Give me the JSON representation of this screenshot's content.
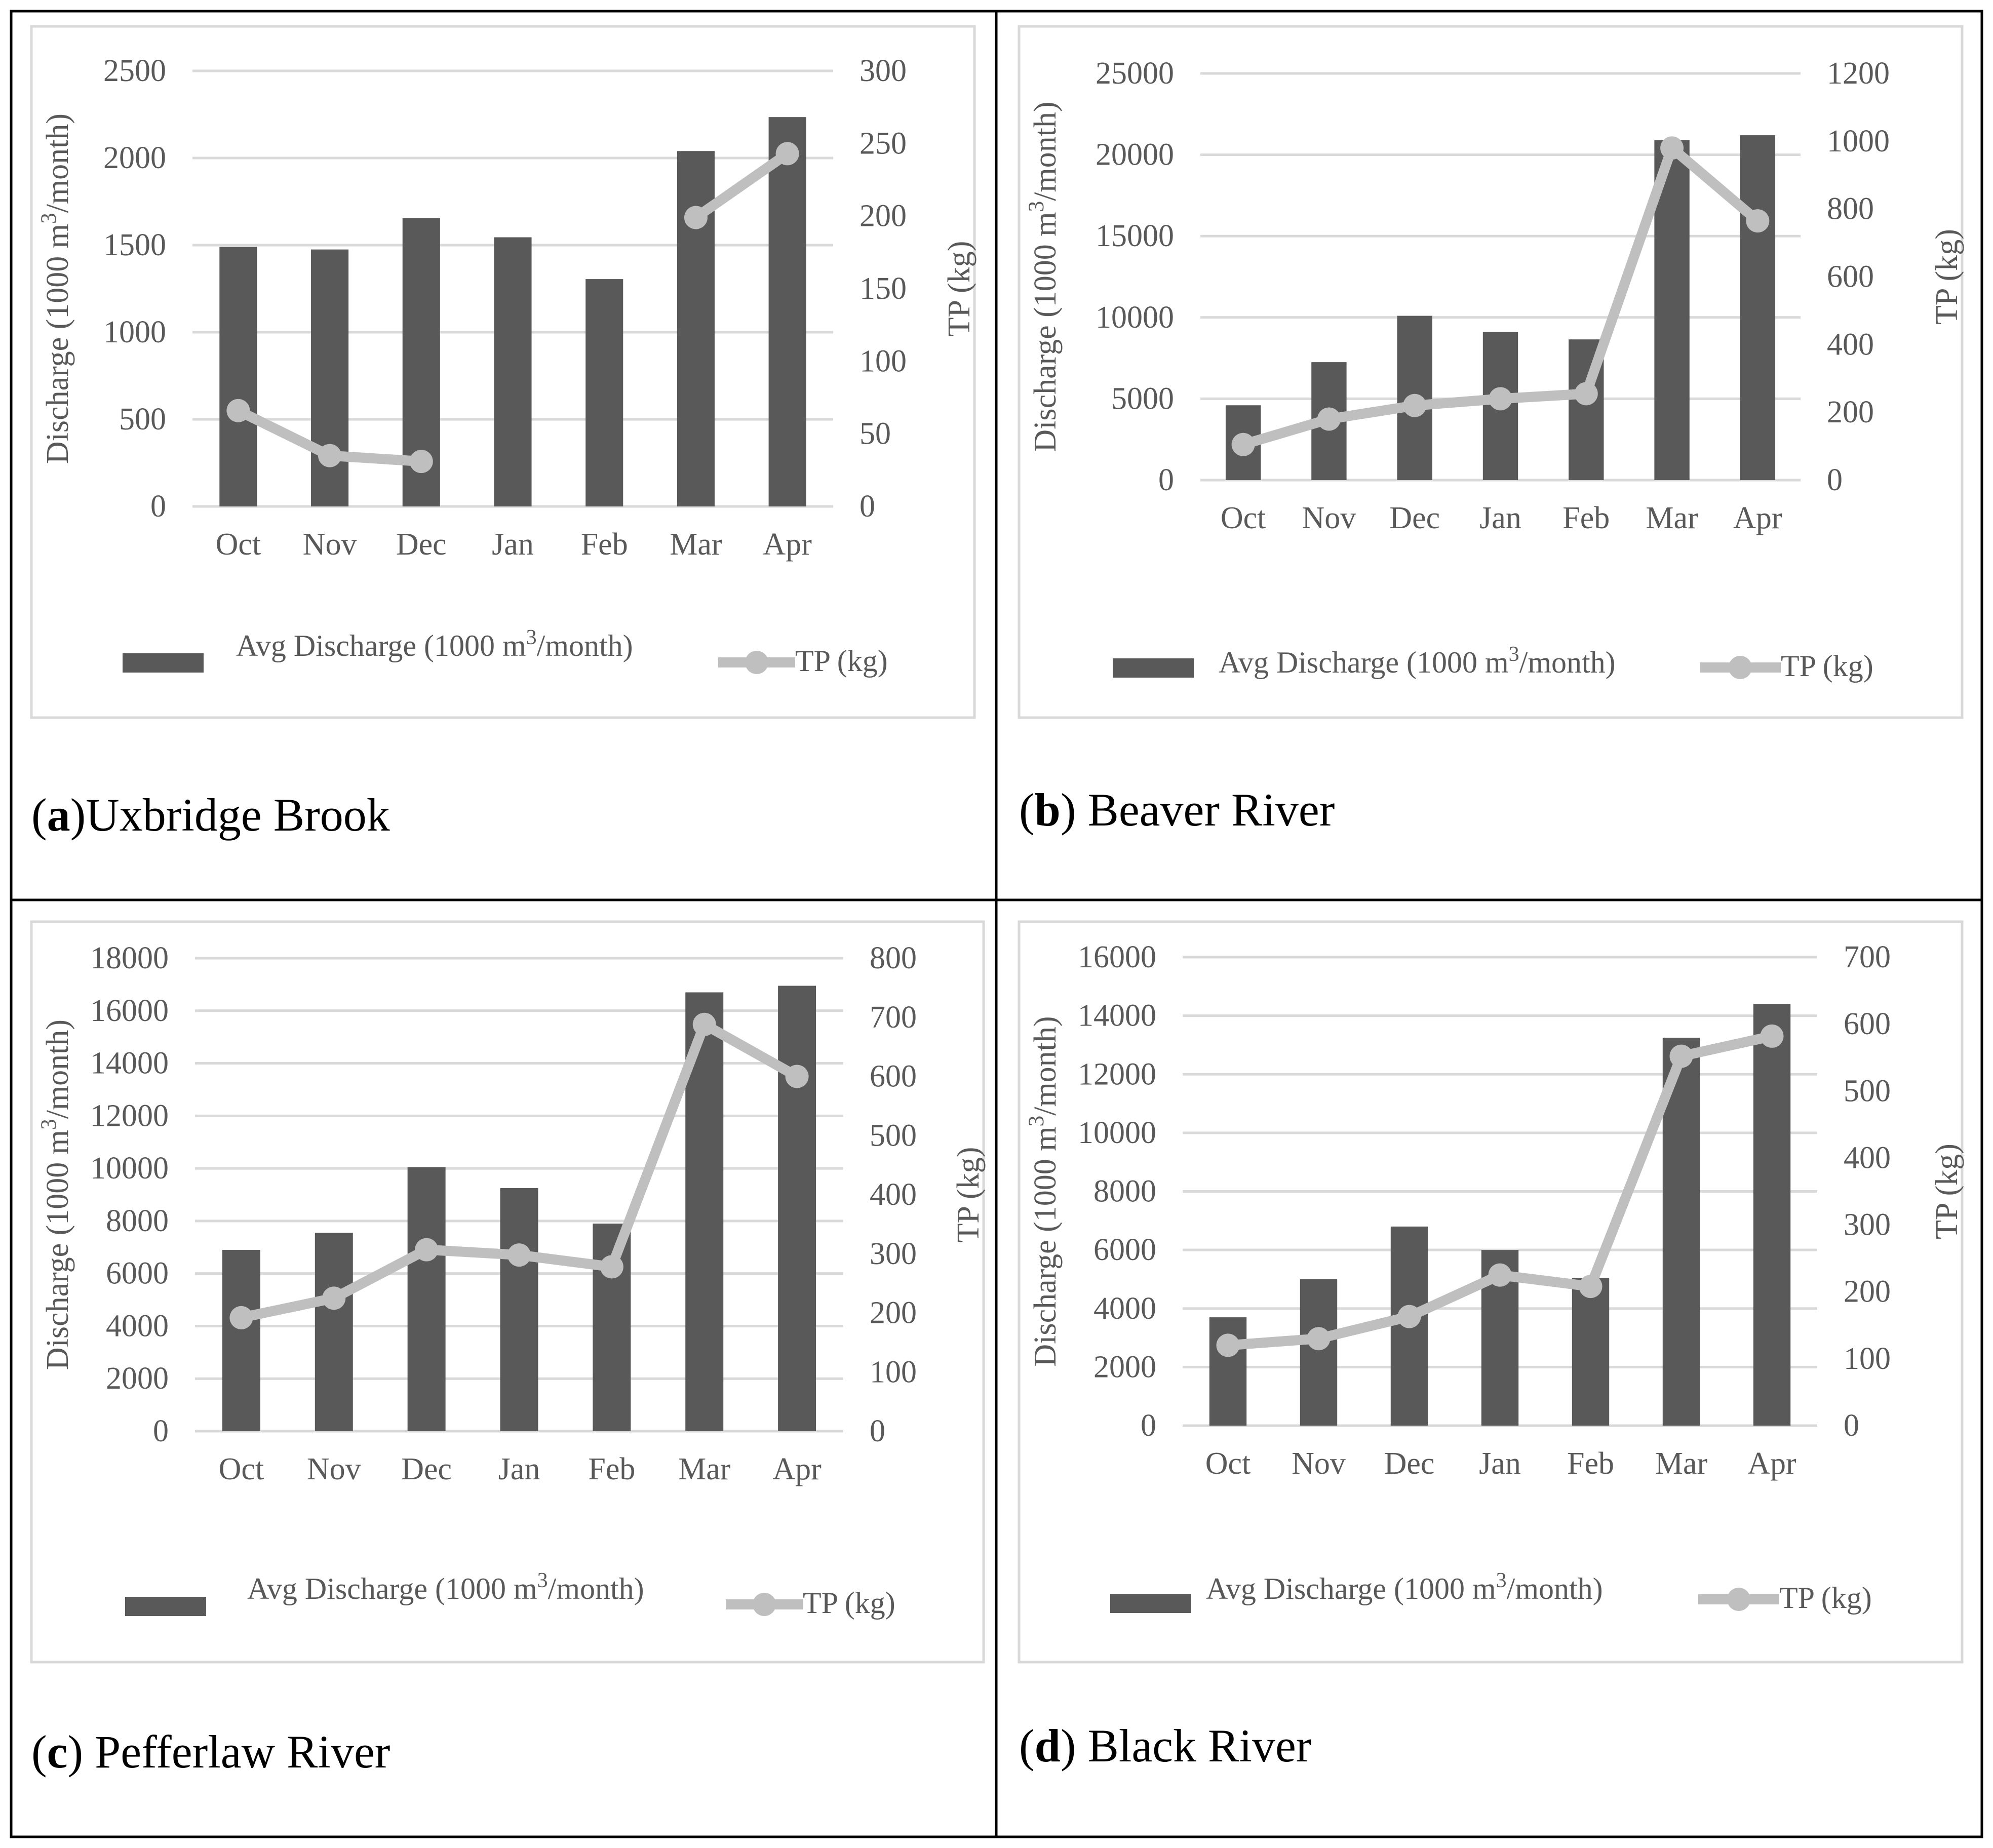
{
  "colors": {
    "bar": "#595959",
    "line": "#bfbfbf",
    "grid": "#d9d9d9",
    "text": "#595959",
    "frame": "#000000",
    "chart_border": "#d9d9d9"
  },
  "chart_data": [
    {
      "type": "bar+line",
      "panel_letter": "a",
      "panel_name": "Uxbridge Brook",
      "categories": [
        "Oct",
        "Nov",
        "Dec",
        "Jan",
        "Feb",
        "Mar",
        "Apr"
      ],
      "series": [
        {
          "name": "Avg Discharge (1000 m3/month)",
          "type": "bar",
          "axis": "left",
          "values": [
            1490,
            1475,
            1655,
            1545,
            1305,
            2040,
            2235
          ]
        },
        {
          "name": "TP (kg)",
          "type": "line",
          "axis": "right",
          "values": [
            66,
            35,
            31,
            null,
            null,
            199,
            243
          ]
        }
      ],
      "ylabel": "Discharge (1000 m3/month)",
      "y2label": "TP (kg)",
      "ylim": [
        0,
        2500
      ],
      "y2lim": [
        0,
        300
      ],
      "yticks": [
        "0",
        "500",
        "1000",
        "1500",
        "2000",
        "2500"
      ],
      "y2ticks": [
        "0",
        "50",
        "100",
        "150",
        "200",
        "250",
        "300"
      ],
      "legend": [
        "Avg Discharge (1000 m3/month)",
        "TP (kg)"
      ],
      "legend_position": "bottom",
      "grid": true
    },
    {
      "type": "bar+line",
      "panel_letter": "b",
      "panel_name": "Beaver River",
      "categories": [
        "Oct",
        "Nov",
        "Dec",
        "Jan",
        "Feb",
        "Mar",
        "Apr"
      ],
      "series": [
        {
          "name": "Avg Discharge (1000 m3/month)",
          "type": "bar",
          "axis": "left",
          "values": [
            4600,
            7250,
            10100,
            9100,
            8650,
            20900,
            21200
          ]
        },
        {
          "name": "TP (kg)",
          "type": "line",
          "axis": "right",
          "values": [
            105,
            180,
            220,
            240,
            255,
            980,
            765
          ]
        }
      ],
      "ylabel": "Discharge (1000 m3/month)",
      "y2label": "TP (kg)",
      "ylim": [
        0,
        25000
      ],
      "y2lim": [
        0,
        1200
      ],
      "yticks": [
        "0",
        "5000",
        "10000",
        "15000",
        "20000",
        "25000"
      ],
      "y2ticks": [
        "0",
        "200",
        "400",
        "600",
        "800",
        "1000",
        "1200"
      ],
      "legend": [
        "Avg Discharge (1000 m3/month)",
        "TP (kg)"
      ],
      "legend_position": "bottom",
      "grid": true
    },
    {
      "type": "bar+line",
      "panel_letter": "c",
      "panel_name": "Pefferlaw River",
      "categories": [
        "Oct",
        "Nov",
        "Dec",
        "Jan",
        "Feb",
        "Mar",
        "Apr"
      ],
      "series": [
        {
          "name": "Avg Discharge (1000 m3/month)",
          "type": "bar",
          "axis": "left",
          "values": [
            6900,
            7550,
            10050,
            9250,
            7900,
            16700,
            16950
          ]
        },
        {
          "name": "TP (kg)",
          "type": "line",
          "axis": "right",
          "values": [
            192,
            225,
            307,
            298,
            278,
            688,
            600
          ]
        }
      ],
      "ylabel": "Discharge (1000 m3/month)",
      "y2label": "TP (kg)",
      "ylim": [
        0,
        18000
      ],
      "y2lim": [
        0,
        800
      ],
      "yticks": [
        "0",
        "2000",
        "4000",
        "6000",
        "8000",
        "10000",
        "12000",
        "14000",
        "16000",
        "18000"
      ],
      "y2ticks": [
        "0",
        "100",
        "200",
        "300",
        "400",
        "500",
        "600",
        "700",
        "800"
      ],
      "legend": [
        "Avg Discharge (1000 m3/month)",
        "TP (kg)"
      ],
      "legend_position": "bottom",
      "grid": true
    },
    {
      "type": "bar+line",
      "panel_letter": "d",
      "panel_name": "Black River",
      "categories": [
        "Oct",
        "Nov",
        "Dec",
        "Jan",
        "Feb",
        "Mar",
        "Apr"
      ],
      "series": [
        {
          "name": "Avg Discharge (1000 m3/month)",
          "type": "bar",
          "axis": "left",
          "values": [
            3700,
            5000,
            6800,
            6000,
            5050,
            13250,
            14400
          ]
        },
        {
          "name": "TP (kg)",
          "type": "line",
          "axis": "right",
          "values": [
            120,
            130,
            163,
            225,
            208,
            552,
            582
          ]
        }
      ],
      "ylabel": "Discharge (1000 m3/month)",
      "y2label": "TP (kg)",
      "ylim": [
        0,
        16000
      ],
      "y2lim": [
        0,
        700
      ],
      "yticks": [
        "0",
        "2000",
        "4000",
        "6000",
        "8000",
        "10000",
        "12000",
        "14000",
        "16000"
      ],
      "y2ticks": [
        "0",
        "100",
        "200",
        "300",
        "400",
        "500",
        "600",
        "700"
      ],
      "legend": [
        "Avg Discharge (1000 m3/month)",
        "TP (kg)"
      ],
      "legend_position": "bottom",
      "grid": true
    }
  ]
}
